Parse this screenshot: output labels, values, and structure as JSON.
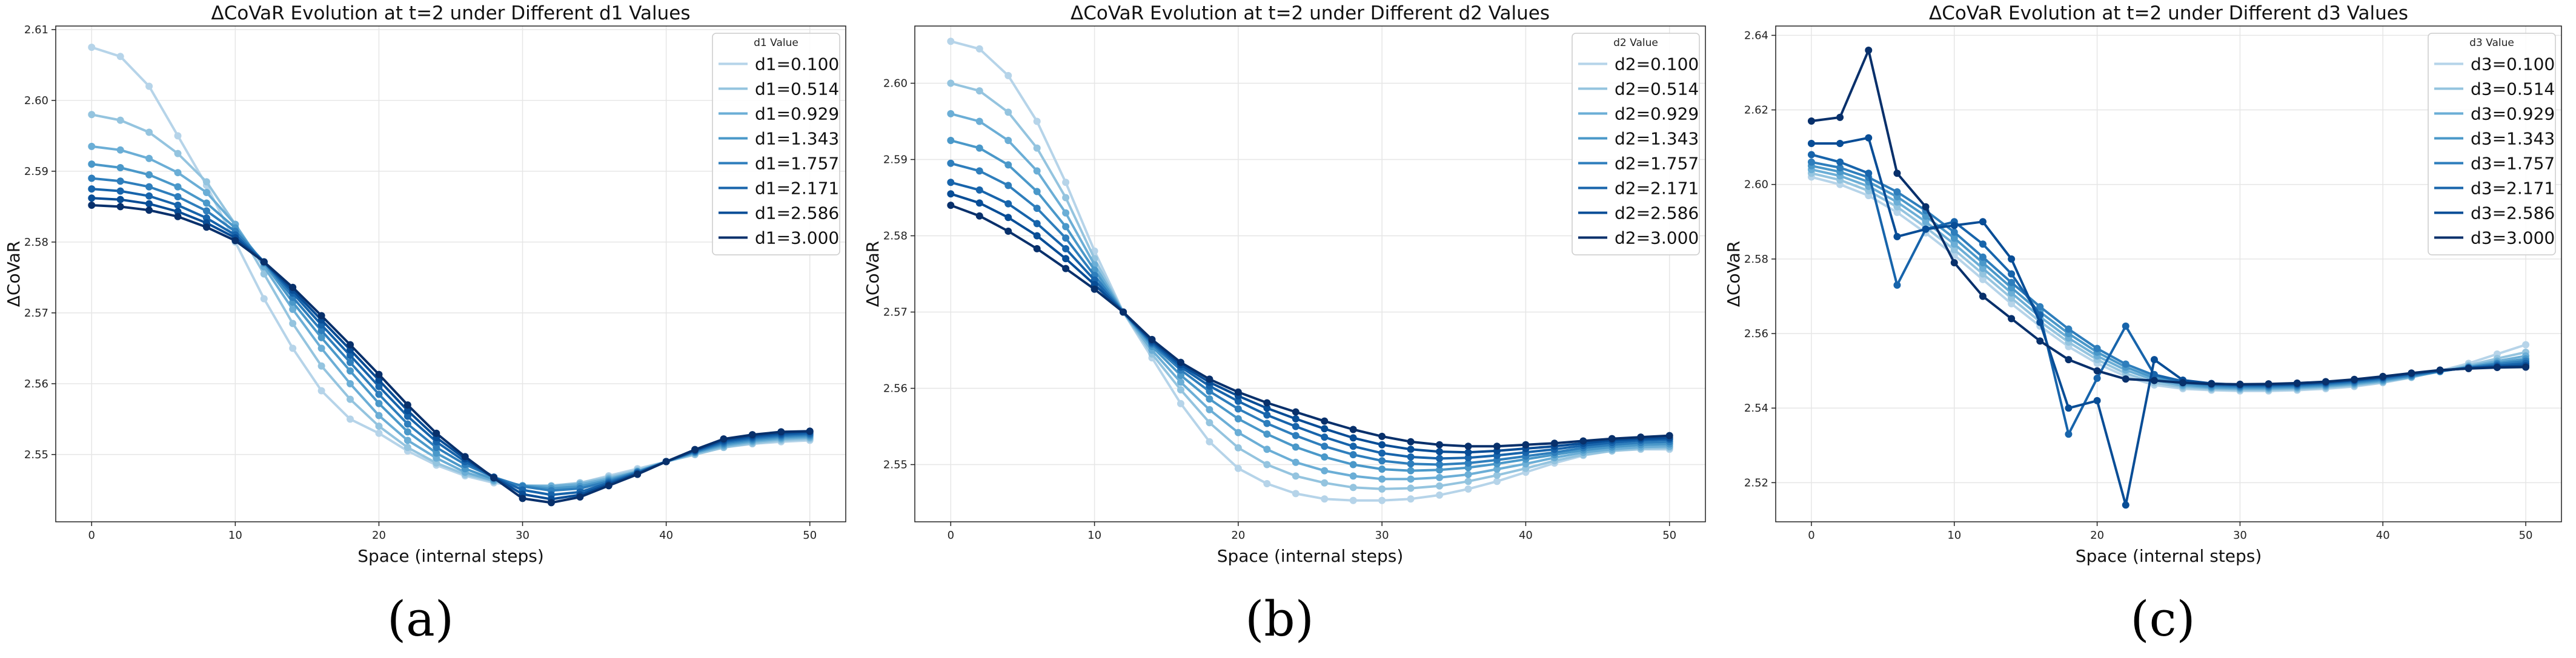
{
  "chart_data": [
    {
      "type": "line",
      "panel_label": "(a)",
      "title": "ΔCoVaR Evolution at t=2 under Different d1 Values",
      "xlabel": "Space (internal steps)",
      "ylabel": "ΔCoVaR",
      "xlim": [
        -2.5,
        52.5
      ],
      "ylim": [
        2.5405,
        2.6105
      ],
      "xticks": [
        0,
        10,
        20,
        30,
        40,
        50
      ],
      "yticks": [
        2.55,
        2.56,
        2.57,
        2.58,
        2.59,
        2.6,
        2.61
      ],
      "ytick_labels": [
        "2.55",
        "2.56",
        "2.57",
        "2.58",
        "2.59",
        "2.60",
        "2.61"
      ],
      "grid": true,
      "legend_title": "d1 Value",
      "legend_position": "top-right",
      "x": [
        0,
        2,
        4,
        6,
        8,
        10,
        12,
        14,
        16,
        18,
        20,
        22,
        24,
        26,
        28,
        30,
        32,
        34,
        36,
        38,
        40,
        42,
        44,
        46,
        48,
        50
      ],
      "series": [
        {
          "name": "d1=0.100",
          "values": [
            2.6075,
            2.6062,
            2.602,
            2.595,
            2.588,
            2.58,
            2.572,
            2.565,
            2.559,
            2.555,
            2.553,
            2.5505,
            2.5485,
            2.547,
            2.546,
            2.5455,
            2.5455,
            2.546,
            2.547,
            2.548,
            2.549,
            2.55,
            2.551,
            2.5515,
            2.5518,
            2.552
          ]
        },
        {
          "name": "d1=0.514",
          "values": [
            2.598,
            2.5972,
            2.5955,
            2.5925,
            2.5885,
            2.5825,
            2.5755,
            2.5685,
            2.5625,
            2.5578,
            2.554,
            2.551,
            2.5488,
            2.5472,
            2.5462,
            2.5456,
            2.5456,
            2.546,
            2.5468,
            2.5478,
            2.549,
            2.55,
            2.551,
            2.5516,
            2.552,
            2.5522
          ]
        },
        {
          "name": "d1=0.929",
          "values": [
            2.5935,
            2.593,
            2.5918,
            2.5898,
            2.587,
            2.5825,
            2.5765,
            2.5705,
            2.565,
            2.56,
            2.5555,
            2.552,
            2.5495,
            2.5475,
            2.5463,
            2.5456,
            2.5455,
            2.5458,
            2.5466,
            2.5476,
            2.549,
            2.5502,
            2.5512,
            2.5518,
            2.5522,
            2.5524
          ]
        },
        {
          "name": "d1=1.343",
          "values": [
            2.591,
            2.5905,
            2.5895,
            2.5878,
            2.5855,
            2.582,
            2.577,
            2.5715,
            2.5665,
            2.5618,
            2.5572,
            2.5532,
            2.5502,
            2.548,
            2.5465,
            2.5456,
            2.5452,
            2.5455,
            2.5464,
            2.5476,
            2.549,
            2.5503,
            2.5514,
            2.552,
            2.5524,
            2.5526
          ]
        },
        {
          "name": "d1=1.757",
          "values": [
            2.589,
            2.5886,
            2.5878,
            2.5864,
            2.5844,
            2.5815,
            2.5772,
            2.5722,
            2.5675,
            2.563,
            2.5585,
            2.5543,
            2.551,
            2.5486,
            2.5468,
            2.5455,
            2.5449,
            2.5452,
            2.5462,
            2.5475,
            2.549,
            2.5504,
            2.5516,
            2.5522,
            2.5526,
            2.5528
          ]
        },
        {
          "name": "d1=2.171",
          "values": [
            2.5875,
            2.5872,
            2.5865,
            2.5852,
            2.5834,
            2.581,
            2.5772,
            2.5728,
            2.5683,
            2.564,
            2.5596,
            2.5554,
            2.5518,
            2.549,
            2.5468,
            2.545,
            2.5443,
            2.5447,
            2.546,
            2.5474,
            2.549,
            2.5505,
            2.5518,
            2.5524,
            2.5528,
            2.553
          ]
        },
        {
          "name": "d1=2.586",
          "values": [
            2.5862,
            2.586,
            2.5854,
            2.5843,
            2.5827,
            2.5806,
            2.5772,
            2.5732,
            2.569,
            2.5648,
            2.5605,
            2.5562,
            2.5524,
            2.5494,
            2.5468,
            2.5444,
            2.5437,
            2.5443,
            2.5458,
            2.5473,
            2.549,
            2.5506,
            2.552,
            2.5526,
            2.553,
            2.5532
          ]
        },
        {
          "name": "d1=3.000",
          "values": [
            2.5852,
            2.585,
            2.5845,
            2.5836,
            2.5821,
            2.5802,
            2.5772,
            2.5736,
            2.5696,
            2.5655,
            2.5613,
            2.557,
            2.553,
            2.5497,
            2.5467,
            2.5438,
            2.5432,
            2.544,
            2.5456,
            2.5472,
            2.549,
            2.5507,
            2.5522,
            2.5528,
            2.5532,
            2.5533
          ]
        }
      ]
    },
    {
      "type": "line",
      "panel_label": "(b)",
      "title": "ΔCoVaR Evolution at t=2 under Different d2 Values",
      "xlabel": "Space (internal steps)",
      "ylabel": "ΔCoVaR",
      "xlim": [
        -2.5,
        52.5
      ],
      "ylim": [
        2.5425,
        2.6075
      ],
      "xticks": [
        0,
        10,
        20,
        30,
        40,
        50
      ],
      "yticks": [
        2.55,
        2.56,
        2.57,
        2.58,
        2.59,
        2.6
      ],
      "ytick_labels": [
        "2.55",
        "2.56",
        "2.57",
        "2.58",
        "2.59",
        "2.60"
      ],
      "grid": true,
      "legend_title": "d2 Value",
      "legend_position": "top-right",
      "x": [
        0,
        2,
        4,
        6,
        8,
        10,
        12,
        14,
        16,
        18,
        20,
        22,
        24,
        26,
        28,
        30,
        32,
        34,
        36,
        38,
        40,
        42,
        44,
        46,
        48,
        50
      ],
      "series": [
        {
          "name": "d2=0.100",
          "values": [
            2.6055,
            2.6045,
            2.601,
            2.595,
            2.587,
            2.578,
            2.57,
            2.564,
            2.558,
            2.553,
            2.5495,
            2.5475,
            2.5462,
            2.5455,
            2.5453,
            2.5453,
            2.5455,
            2.546,
            2.5468,
            2.5478,
            2.549,
            2.5502,
            2.5512,
            2.5518,
            2.552,
            2.552
          ]
        },
        {
          "name": "d2=0.514",
          "values": [
            2.6,
            2.599,
            2.5962,
            2.5915,
            2.585,
            2.577,
            2.57,
            2.5645,
            2.5598,
            2.5555,
            2.5522,
            2.55,
            2.5485,
            2.5476,
            2.547,
            2.5468,
            2.5469,
            2.5472,
            2.5478,
            2.5486,
            2.5495,
            2.5505,
            2.5513,
            2.5518,
            2.5521,
            2.5522
          ]
        },
        {
          "name": "d2=0.929",
          "values": [
            2.596,
            2.595,
            2.5925,
            2.5885,
            2.583,
            2.5762,
            2.57,
            2.565,
            2.5608,
            2.5572,
            2.5542,
            2.552,
            2.5503,
            2.5492,
            2.5485,
            2.5481,
            2.5481,
            2.5483,
            2.5487,
            2.5494,
            2.5501,
            2.5509,
            2.5516,
            2.552,
            2.5523,
            2.5524
          ]
        },
        {
          "name": "d2=1.343",
          "values": [
            2.5925,
            2.5915,
            2.5893,
            2.5858,
            2.5812,
            2.5755,
            2.57,
            2.5655,
            2.5617,
            2.5586,
            2.556,
            2.554,
            2.5523,
            2.551,
            2.55,
            2.5494,
            2.5492,
            2.5493,
            2.5496,
            2.5501,
            2.5507,
            2.5513,
            2.5519,
            2.5523,
            2.5526,
            2.5527
          ]
        },
        {
          "name": "d2=1.757",
          "values": [
            2.5895,
            2.5885,
            2.5866,
            2.5836,
            2.5797,
            2.5748,
            2.57,
            2.5658,
            2.5624,
            2.5596,
            2.5573,
            2.5554,
            2.5538,
            2.5524,
            2.5513,
            2.5505,
            2.5501,
            2.55,
            2.5502,
            2.5506,
            2.5511,
            2.5516,
            2.5522,
            2.5526,
            2.5529,
            2.553
          ]
        },
        {
          "name": "d2=2.171",
          "values": [
            2.587,
            2.586,
            2.5842,
            2.5816,
            2.5783,
            2.5742,
            2.57,
            2.566,
            2.5628,
            2.5603,
            2.5583,
            2.5565,
            2.555,
            2.5536,
            2.5524,
            2.5515,
            2.551,
            2.5508,
            2.5509,
            2.5512,
            2.5516,
            2.552,
            2.5525,
            2.5529,
            2.5532,
            2.5533
          ]
        },
        {
          "name": "d2=2.586",
          "values": [
            2.5855,
            2.5843,
            2.5824,
            2.58,
            2.577,
            2.5736,
            2.57,
            2.5662,
            2.5631,
            2.5608,
            2.559,
            2.5574,
            2.556,
            2.5547,
            2.5535,
            2.5526,
            2.552,
            2.5517,
            2.5516,
            2.5518,
            2.5521,
            2.5524,
            2.5528,
            2.5532,
            2.5534,
            2.5535
          ]
        },
        {
          "name": "d2=3.000",
          "values": [
            2.584,
            2.5826,
            2.5806,
            2.5783,
            2.5757,
            2.573,
            2.57,
            2.5664,
            2.5634,
            2.5612,
            2.5595,
            2.5581,
            2.5569,
            2.5557,
            2.5546,
            2.5537,
            2.553,
            2.5526,
            2.5524,
            2.5524,
            2.5526,
            2.5528,
            2.5531,
            2.5534,
            2.5536,
            2.5538
          ]
        }
      ]
    },
    {
      "type": "line",
      "panel_label": "(c)",
      "title": "ΔCoVaR Evolution at t=2 under Different d3 Values",
      "xlabel": "Space (internal steps)",
      "ylabel": "ΔCoVaR",
      "xlim": [
        -2.5,
        52.5
      ],
      "ylim": [
        2.5095,
        2.6425
      ],
      "xticks": [
        0,
        10,
        20,
        30,
        40,
        50
      ],
      "yticks": [
        2.52,
        2.54,
        2.56,
        2.58,
        2.6,
        2.62,
        2.64
      ],
      "ytick_labels": [
        "2.52",
        "2.54",
        "2.56",
        "2.58",
        "2.60",
        "2.62",
        "2.64"
      ],
      "grid": true,
      "legend_title": "d3 Value",
      "legend_position": "top-right",
      "x": [
        0,
        2,
        4,
        6,
        8,
        10,
        12,
        14,
        16,
        18,
        20,
        22,
        24,
        26,
        28,
        30,
        32,
        34,
        36,
        38,
        40,
        42,
        44,
        46,
        48,
        50
      ],
      "series": [
        {
          "name": "d3=0.100",
          "values": [
            2.602,
            2.6,
            2.597,
            2.5925,
            2.587,
            2.581,
            2.5745,
            2.568,
            2.562,
            2.5565,
            2.552,
            2.5485,
            2.5462,
            2.5452,
            2.5448,
            2.5446,
            2.5446,
            2.5448,
            2.5452,
            2.5458,
            2.5468,
            2.5482,
            2.55,
            2.552,
            2.5545,
            2.557
          ]
        },
        {
          "name": "d3=0.514",
          "values": [
            2.603,
            2.6012,
            2.5983,
            2.594,
            2.5885,
            2.5825,
            2.576,
            2.5695,
            2.5632,
            2.5577,
            2.553,
            2.5493,
            2.5468,
            2.5456,
            2.5451,
            2.5449,
            2.5449,
            2.5451,
            2.5455,
            2.5461,
            2.547,
            2.5483,
            2.5499,
            2.5515,
            2.5533,
            2.555
          ]
        },
        {
          "name": "d3=0.929",
          "values": [
            2.604,
            2.6023,
            2.5995,
            2.5953,
            2.59,
            2.584,
            2.5775,
            2.5709,
            2.5645,
            2.5588,
            2.554,
            2.5502,
            2.5475,
            2.546,
            2.5454,
            2.5452,
            2.5452,
            2.5454,
            2.5458,
            2.5464,
            2.5472,
            2.5484,
            2.5498,
            2.5512,
            2.5526,
            2.554
          ]
        },
        {
          "name": "d3=1.343",
          "values": [
            2.605,
            2.6034,
            2.6007,
            2.5967,
            2.5915,
            2.5856,
            2.579,
            2.5723,
            2.5658,
            2.56,
            2.555,
            2.551,
            2.5481,
            2.5464,
            2.5457,
            2.5455,
            2.5455,
            2.5457,
            2.5461,
            2.5467,
            2.5475,
            2.5486,
            2.5498,
            2.551,
            2.5521,
            2.5532
          ]
        },
        {
          "name": "d3=1.757",
          "values": [
            2.606,
            2.6045,
            2.6019,
            2.598,
            2.593,
            2.5872,
            2.5805,
            2.5737,
            2.5672,
            2.5612,
            2.556,
            2.5518,
            2.5488,
            2.5469,
            2.5461,
            2.5458,
            2.5458,
            2.546,
            2.5464,
            2.547,
            2.5478,
            2.5488,
            2.5499,
            2.5509,
            2.5518,
            2.5526
          ]
        },
        {
          "name": "d3=2.171",
          "values": [
            2.608,
            2.606,
            2.603,
            2.573,
            2.588,
            2.59,
            2.584,
            2.576,
            2.565,
            2.533,
            2.548,
            2.562,
            2.549,
            2.5472,
            2.5464,
            2.5461,
            2.5461,
            2.5463,
            2.5467,
            2.5473,
            2.5481,
            2.5491,
            2.55,
            2.5508,
            2.5514,
            2.552
          ]
        },
        {
          "name": "d3=2.586",
          "values": [
            2.611,
            2.611,
            2.6125,
            2.586,
            2.588,
            2.589,
            2.59,
            2.58,
            2.563,
            2.54,
            2.542,
            2.514,
            2.553,
            2.5475,
            2.5466,
            2.5463,
            2.5463,
            2.5465,
            2.5469,
            2.5475,
            2.5483,
            2.5493,
            2.5501,
            2.5507,
            2.5511,
            2.5514
          ]
        },
        {
          "name": "d3=3.000",
          "values": [
            2.617,
            2.618,
            2.636,
            2.603,
            2.594,
            2.579,
            2.57,
            2.564,
            2.558,
            2.553,
            2.55,
            2.5478,
            2.5474,
            2.5468,
            2.5465,
            2.5464,
            2.5465,
            2.5467,
            2.5471,
            2.5477,
            2.5485,
            2.5494,
            2.5502,
            2.5506,
            2.5509,
            2.551
          ]
        }
      ]
    }
  ],
  "colors": [
    "#b6d4e9",
    "#94c4df",
    "#6baed6",
    "#4a98c9",
    "#2e7ebc",
    "#1764ab",
    "#084d96",
    "#08306b"
  ],
  "axes_color": "#222222",
  "grid_color": "#e6e6e6"
}
